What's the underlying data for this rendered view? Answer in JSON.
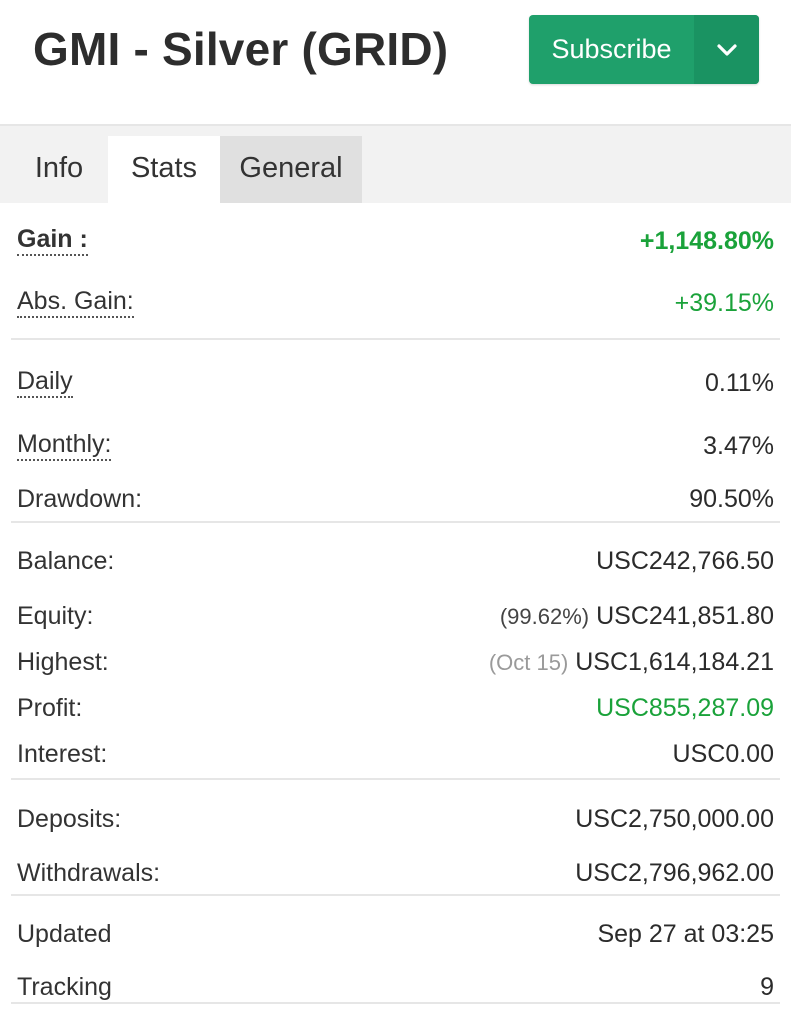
{
  "header": {
    "title": "GMI - Silver (GRID)",
    "subscribe_label": "Subscribe"
  },
  "tabs": [
    {
      "label": "Info"
    },
    {
      "label": "Stats"
    },
    {
      "label": "General"
    }
  ],
  "stats": {
    "gain": {
      "label": "Gain :",
      "value": "+1,148.80%"
    },
    "abs_gain": {
      "label": "Abs. Gain:",
      "value": "+39.15%"
    },
    "daily": {
      "label": "Daily",
      "value": "0.11%"
    },
    "monthly": {
      "label": "Monthly:",
      "value": "3.47%"
    },
    "drawdown": {
      "label": "Drawdown:",
      "value": "90.50%"
    },
    "balance": {
      "label": "Balance:",
      "value": "USC242,766.50"
    },
    "equity": {
      "label": "Equity:",
      "prefix": "(99.62%)",
      "value": "USC241,851.80"
    },
    "highest": {
      "label": "Highest:",
      "prefix": "(Oct 15)",
      "value": "USC1,614,184.21"
    },
    "profit": {
      "label": "Profit:",
      "value": "USC855,287.09"
    },
    "interest": {
      "label": "Interest:",
      "value": "USC0.00"
    },
    "deposits": {
      "label": "Deposits:",
      "value": "USC2,750,000.00"
    },
    "withdrawals": {
      "label": "Withdrawals:",
      "value": "USC2,796,962.00"
    },
    "updated": {
      "label": "Updated",
      "value": "Sep 27 at 03:25"
    },
    "tracking": {
      "label": "Tracking",
      "value": "9"
    }
  },
  "colors": {
    "accent_green": "#1fa06b",
    "gain_green": "#1aa23a"
  },
  "icons": {
    "subscribe_dropdown": "chevron-down-icon"
  }
}
